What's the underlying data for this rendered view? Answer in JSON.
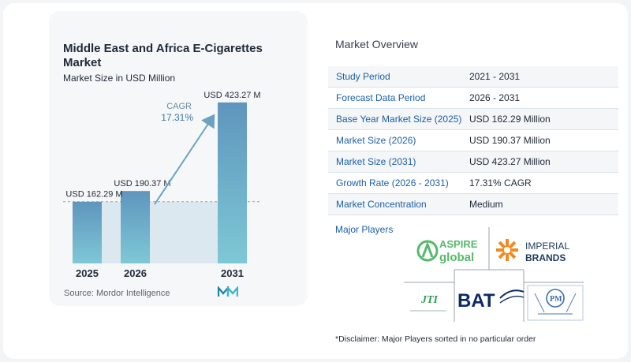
{
  "chart_data": {
    "type": "bar",
    "title": "Middle East and Africa E-Cigarettes Market",
    "subtitle": "Market Size in USD Million",
    "categories": [
      "2025",
      "2026",
      "2031"
    ],
    "values": [
      162.29,
      190.37,
      423.27
    ],
    "value_labels": [
      "USD 162.29 M",
      "USD 190.37 M",
      "USD 423.27 M"
    ],
    "cagr_label": "CAGR",
    "cagr_value": "17.31%",
    "ylim": [
      0,
      450
    ],
    "grid": false,
    "colors": {
      "bar_top": "#5f95bd",
      "bar_bottom": "#7ec8d6",
      "band": "#dce8ef",
      "arrow": "#6aa3c2"
    }
  },
  "source": "Source:  Mordor Intelligence",
  "overview": {
    "title": "Market Overview",
    "rows": [
      {
        "label": "Study Period",
        "value": "2021 - 2031"
      },
      {
        "label": "Forecast Data Period",
        "value": "2026 - 2031"
      },
      {
        "label": "Base Year Market Size (2025)",
        "value": "USD 162.29 Million"
      },
      {
        "label": "Market Size (2026)",
        "value": "USD 190.37 Million"
      },
      {
        "label": "Market Size (2031)",
        "value": "USD 423.27 Million"
      },
      {
        "label": "Growth Rate (2026 - 2031)",
        "value": "17.31% CAGR"
      },
      {
        "label": "Market Concentration",
        "value": "Medium"
      }
    ]
  },
  "players": {
    "title": "Major Players",
    "logos": [
      {
        "name": "Aspire Global",
        "line1": "ASPIRE",
        "line2": "global"
      },
      {
        "name": "Imperial Brands",
        "line1": "IMPERIAL",
        "line2": "BRANDS"
      },
      {
        "name": "Japan Tobacco International",
        "line1": "JTI"
      },
      {
        "name": "BAT",
        "line1": "BAT"
      },
      {
        "name": "Philip Morris International",
        "line1": "PM"
      }
    ]
  },
  "disclaimer": "*Disclaimer: Major Players sorted in no particular order"
}
